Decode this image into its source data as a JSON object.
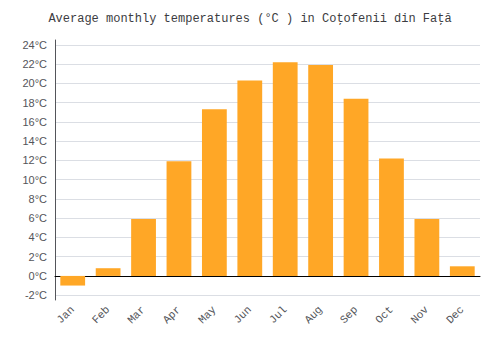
{
  "chart_data": {
    "type": "bar",
    "title": "Average monthly temperatures (°C ) in Coţofenii din Faţă",
    "categories": [
      "Jan",
      "Feb",
      "Mar",
      "Apr",
      "May",
      "Jun",
      "Jul",
      "Aug",
      "Sep",
      "Oct",
      "Nov",
      "Dec"
    ],
    "values": [
      -1.0,
      0.8,
      5.9,
      11.9,
      17.3,
      20.3,
      22.2,
      21.9,
      18.4,
      12.2,
      5.9,
      1.0
    ],
    "color": "#FFA726",
    "ylim": [
      -2.5,
      24.5
    ],
    "yticks": [
      {
        "value": -2,
        "label": "-2°C"
      },
      {
        "value": 0,
        "label": "0°C"
      },
      {
        "value": 2,
        "label": "2°C"
      },
      {
        "value": 4,
        "label": "4°C"
      },
      {
        "value": 6,
        "label": "6°C"
      },
      {
        "value": 8,
        "label": "8°C"
      },
      {
        "value": 10,
        "label": "10°C"
      },
      {
        "value": 12,
        "label": "12°C"
      },
      {
        "value": 14,
        "label": "14°C"
      },
      {
        "value": 16,
        "label": "16°C"
      },
      {
        "value": 18,
        "label": "18°C"
      },
      {
        "value": 20,
        "label": "20°C"
      },
      {
        "value": 22,
        "label": "22°C"
      },
      {
        "value": 24,
        "label": "24°C"
      }
    ],
    "grid": true
  }
}
